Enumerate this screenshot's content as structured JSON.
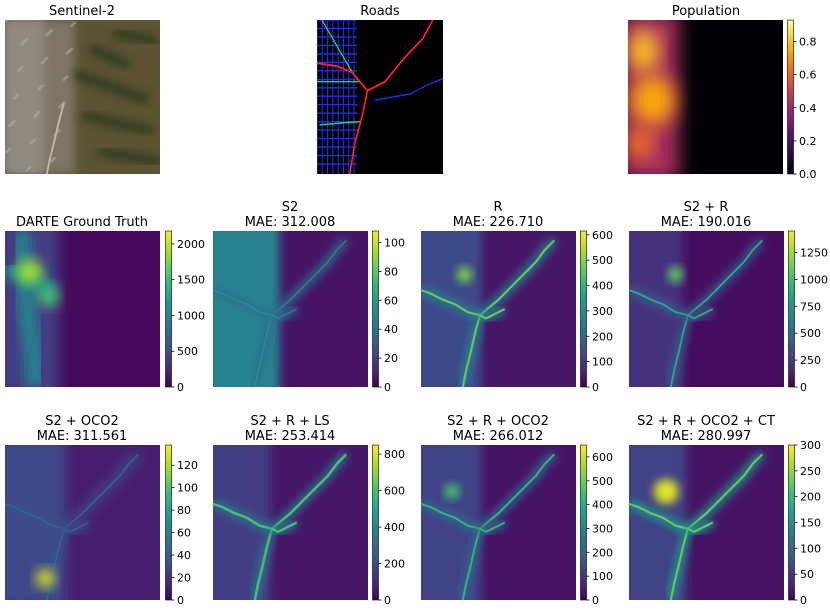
{
  "chart_data": [
    {
      "type": "heatmap",
      "title": "Sentinel-2",
      "subtitle": ""
    },
    {
      "type": "heatmap",
      "title": "Roads",
      "subtitle": ""
    },
    {
      "type": "heatmap",
      "title": "Population",
      "subtitle": "",
      "colorbar": {
        "colormap": "inferno",
        "range": [
          0,
          0.93
        ],
        "ticks": [
          "0.0",
          "0.2",
          "0.4",
          "0.6",
          "0.8"
        ]
      }
    },
    {
      "type": "heatmap",
      "title": "DARTE Ground Truth",
      "subtitle": "",
      "colorbar": {
        "colormap": "viridis",
        "range": [
          0,
          2180
        ],
        "ticks": [
          "0",
          "500",
          "1000",
          "1500",
          "2000"
        ]
      }
    },
    {
      "type": "heatmap",
      "title": "S2",
      "subtitle": "MAE: 312.008",
      "colorbar": {
        "colormap": "viridis",
        "range": [
          0,
          108
        ],
        "ticks": [
          "0",
          "20",
          "40",
          "60",
          "80",
          "100"
        ]
      }
    },
    {
      "type": "heatmap",
      "title": "R",
      "subtitle": "MAE: 226.710",
      "colorbar": {
        "colormap": "viridis",
        "range": [
          0,
          615
        ],
        "ticks": [
          "0",
          "100",
          "200",
          "300",
          "400",
          "500",
          "600"
        ]
      }
    },
    {
      "type": "heatmap",
      "title": "S2 + R",
      "subtitle": "MAE: 190.016",
      "colorbar": {
        "colormap": "viridis",
        "range": [
          0,
          1450
        ],
        "ticks": [
          "0",
          "250",
          "500",
          "750",
          "1000",
          "1250"
        ]
      }
    },
    {
      "type": "heatmap",
      "title": "S2 + OCO2",
      "subtitle": "MAE: 311.561",
      "colorbar": {
        "colormap": "viridis",
        "range": [
          0,
          138
        ],
        "ticks": [
          "0",
          "20",
          "40",
          "60",
          "80",
          "100",
          "120"
        ]
      }
    },
    {
      "type": "heatmap",
      "title": "S2 + R + LS",
      "subtitle": "MAE: 253.414",
      "colorbar": {
        "colormap": "viridis",
        "range": [
          0,
          850
        ],
        "ticks": [
          "0",
          "200",
          "400",
          "600",
          "800"
        ]
      }
    },
    {
      "type": "heatmap",
      "title": "S2 + R + OCO2",
      "subtitle": "MAE: 266.012",
      "colorbar": {
        "colormap": "viridis",
        "range": [
          0,
          650
        ],
        "ticks": [
          "0",
          "100",
          "200",
          "300",
          "400",
          "500",
          "600"
        ]
      }
    },
    {
      "type": "heatmap",
      "title": "S2 + R + OCO2 + CT",
      "subtitle": "MAE: 280.997",
      "colorbar": {
        "colormap": "viridis",
        "range": [
          0,
          300
        ],
        "ticks": [
          "0",
          "50",
          "100",
          "150",
          "200",
          "250",
          "300"
        ]
      }
    }
  ]
}
